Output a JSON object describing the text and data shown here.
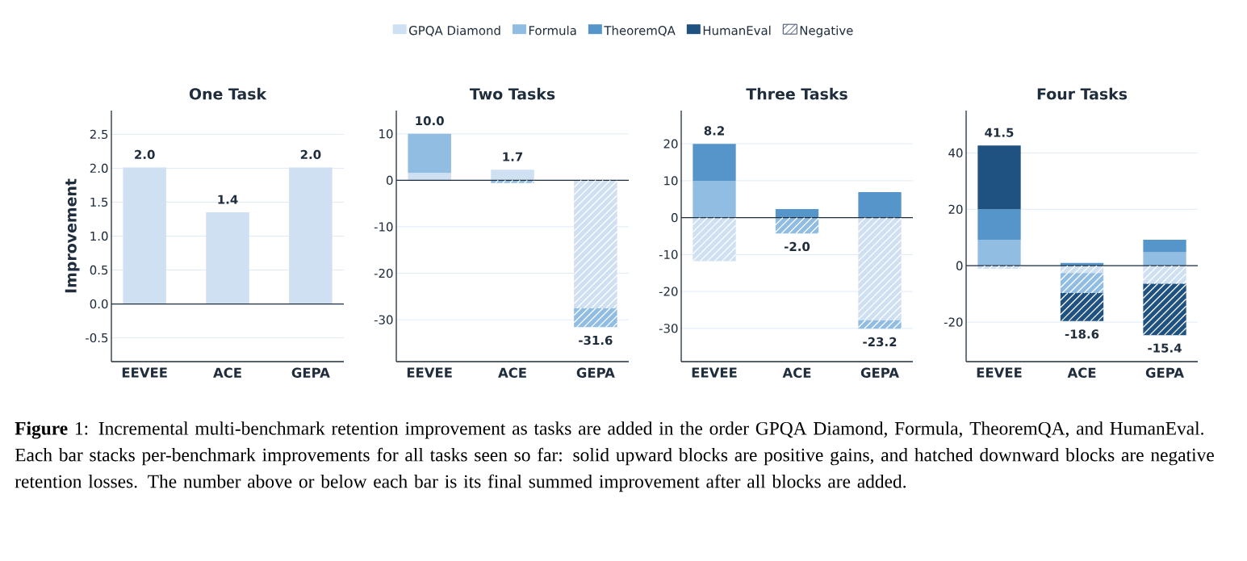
{
  "chart_data": [
    {
      "type": "bar",
      "stacked": true,
      "title": "One Task",
      "ylabel": "Improvement",
      "categories": [
        "EEVEE",
        "ACE",
        "GEPA"
      ],
      "grid": "y",
      "ylim": [
        -0.85,
        2.85
      ],
      "yticks": [
        -0.5,
        {
          "value": 0,
          "label": "0.0"
        },
        0.5,
        {
          "value": 1,
          "label": "1.0"
        },
        1.5,
        {
          "value": 2,
          "label": "2.0"
        },
        2.5
      ],
      "ref_lines": [
        {
          "axis": "y",
          "value": 0,
          "color": "#1f2d3d"
        }
      ],
      "series": [
        {
          "color": "#cfe0f2",
          "values": [
            2.01,
            1.35,
            2.01
          ]
        }
      ],
      "totals": [
        "2.0",
        "1.4",
        "2.0"
      ]
    },
    {
      "type": "bar",
      "stacked": true,
      "title": "Two Tasks",
      "categories": [
        "EEVEE",
        "ACE",
        "GEPA"
      ],
      "grid": "y",
      "ylim": [
        -39,
        15
      ],
      "yticks": [
        -30,
        -20,
        -10,
        0,
        10
      ],
      "ref_lines": [
        {
          "axis": "y",
          "value": 0,
          "color": "#1f2d3d"
        }
      ],
      "series": [
        {
          "color": "#cfe0f2",
          "values": [
            1.6,
            2.3,
            -27.5
          ]
        },
        {
          "color": "#92bde3",
          "values": [
            8.4,
            -0.6,
            -4.1
          ]
        }
      ],
      "totals": [
        "10.0",
        "1.7",
        "-31.6"
      ]
    },
    {
      "type": "bar",
      "stacked": true,
      "title": "Three Tasks",
      "categories": [
        "EEVEE",
        "ACE",
        "GEPA"
      ],
      "grid": "y",
      "ylim": [
        -39,
        29
      ],
      "yticks": [
        -30,
        -20,
        -10,
        0,
        10,
        20
      ],
      "ref_lines": [
        {
          "axis": "y",
          "value": 0,
          "color": "#1f2d3d"
        }
      ],
      "series": [
        {
          "color": "#cfe0f2",
          "values": [
            -11.8,
            null,
            -27.8
          ]
        },
        {
          "color": "#92bde3",
          "values": [
            10.0,
            -4.3,
            -2.3
          ]
        },
        {
          "color": "#5595c9",
          "values": [
            10.0,
            2.3,
            6.9
          ]
        }
      ],
      "totals": [
        "8.2",
        "-2.0",
        "-23.2"
      ]
    },
    {
      "type": "bar",
      "stacked": true,
      "title": "Four Tasks",
      "categories": [
        "EEVEE",
        "ACE",
        "GEPA"
      ],
      "grid": "y",
      "ylim": [
        -34,
        55
      ],
      "yticks": [
        -20,
        0,
        20,
        40
      ],
      "legend": "top",
      "ref_lines": [
        {
          "axis": "y",
          "value": 0,
          "color": "#1f2d3d"
        }
      ],
      "series": [
        {
          "name": "GPQA Diamond",
          "color": "#cfe0f2",
          "values": [
            -1.1,
            -2.6,
            -6.4
          ]
        },
        {
          "name": "Formula",
          "color": "#92bde3",
          "values": [
            9.2,
            -7.1,
            4.8
          ]
        },
        {
          "name": "TheoremQA",
          "color": "#5595c9",
          "values": [
            10.8,
            1.0,
            4.4
          ]
        },
        {
          "name": "HumanEval",
          "color": "#1f5280",
          "values": [
            22.6,
            -9.9,
            -18.2
          ]
        }
      ],
      "totals": [
        "41.5",
        "-18.6",
        "-15.4"
      ],
      "annotations": [
        "Negative",
        "**Figure** 1: Incremental multi-benchmark retention improvement as tasks are added in the order GPQA Diamond, Formula, TheoremQA, and HumanEval. Each bar stacks per-benchmark improvements for all tasks seen so far: solid upward blocks are positive gains, and hatched downward blocks are negative retention losses. The number above or below each bar is its final summed improvement after all blocks are added."
      ]
    }
  ]
}
